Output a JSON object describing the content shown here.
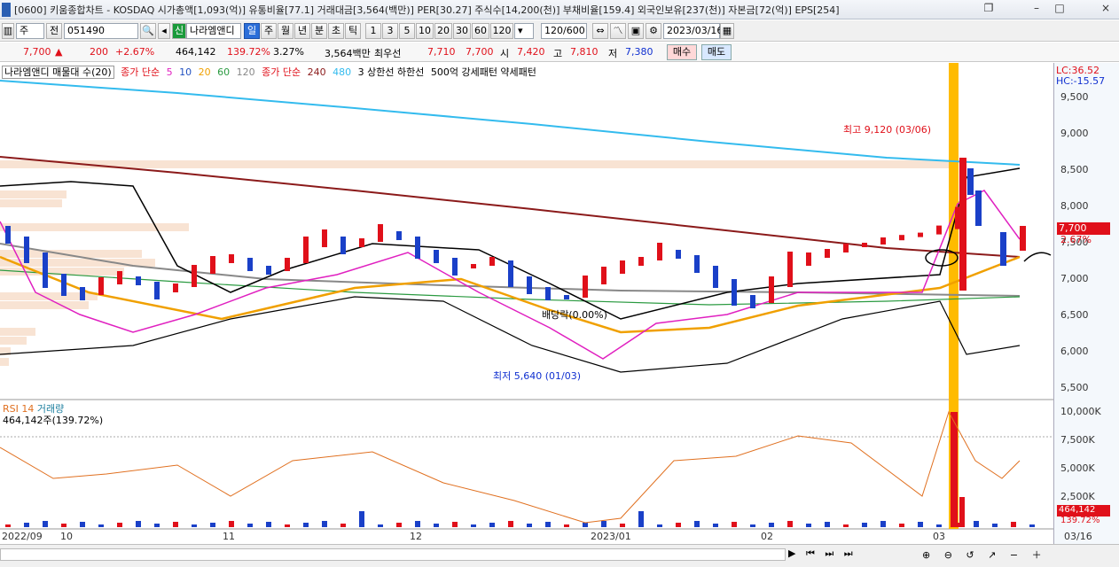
{
  "window": {
    "title": "[0600] 키움종합차트 - KOSDAQ 시가총액[1,093(억)] 유통비율[77.1] 거래대금[3,564(백만)] PER[30.27] 주식수[14,200(천)] 부채비율[159.4] 외국인보유[237(천)] 자본금[72(억)] EPS[254]",
    "min": "–",
    "max": "□",
    "close": "×",
    "restore": "❐"
  },
  "toolbar": {
    "period": "주",
    "prefix": "전",
    "code": "051490",
    "stock_tag": "신",
    "stock_name": "나라엠앤디",
    "tabs": [
      "일",
      "주",
      "월",
      "년",
      "분",
      "초",
      "틱"
    ],
    "intervals": [
      "1",
      "3",
      "5",
      "10",
      "20",
      "30",
      "60",
      "120"
    ],
    "count": "120/600",
    "date": "2023/03/16"
  },
  "quote": {
    "price": "7,700",
    "arrow": "▲",
    "change": "200",
    "change_pct": "+2.67%",
    "volume": "464,142",
    "vol_pct": "139.72%",
    "turnover_pct": "3.27%",
    "amount": "3,564백만",
    "best_label": "최우선",
    "ask": "7,710",
    "bid": "7,700",
    "open_label": "시",
    "open": "7,420",
    "high_label": "고",
    "high": "7,810",
    "low_label": "저",
    "low": "7,380",
    "buy": "매수",
    "sell": "매도"
  },
  "legend": {
    "vp": "나라엠앤디 매물대 수(20)",
    "ma_label": "종가 단순",
    "ma5": "5",
    "ma10": "10",
    "ma20": "20",
    "ma60": "60",
    "ma120": "120",
    "ma_long_label": "종가 단순",
    "ma240": "240",
    "ma480": "480",
    "upper": "3 상한선 하한선",
    "pattern": "500억 강세패턴 약세패턴"
  },
  "price_axis": {
    "lc": "LC:36.52",
    "hc": "HC:-15.57",
    "ticks": [
      "9,500",
      "9,000",
      "8,500",
      "8,000",
      "7,500",
      "7,000",
      "6,500",
      "6,000",
      "5,500"
    ],
    "current": "7,700",
    "current_pct": "2.67%"
  },
  "annotations": {
    "high": "최고 9,120 (03/06)",
    "low": "최저 5,640 (01/03)",
    "dividend": "배당락(0.00%)"
  },
  "lower_legend": {
    "rsi": "RSI 14",
    "vol": "거래량",
    "vol_value": "464,142주(139.72%)"
  },
  "volume_axis": {
    "ticks": [
      "10,000K",
      "7,500K",
      "5,000K",
      "2,500K"
    ],
    "current": "464,142",
    "current_pct": "139.72%"
  },
  "x_axis": {
    "labels": [
      "2022/09",
      "10",
      "11",
      "12",
      "2023/01",
      "02",
      "03"
    ],
    "right": "03/16"
  },
  "colors": {
    "up": "#e0101a",
    "down": "#1a40c8",
    "ma5": "#e020c0",
    "ma20": "#f0a000",
    "ma60": "#2a9a40",
    "ma120": "#888888",
    "ma240": "#8b1a1a",
    "ma480": "#33bbee",
    "highlight": "#ffbb00"
  }
}
